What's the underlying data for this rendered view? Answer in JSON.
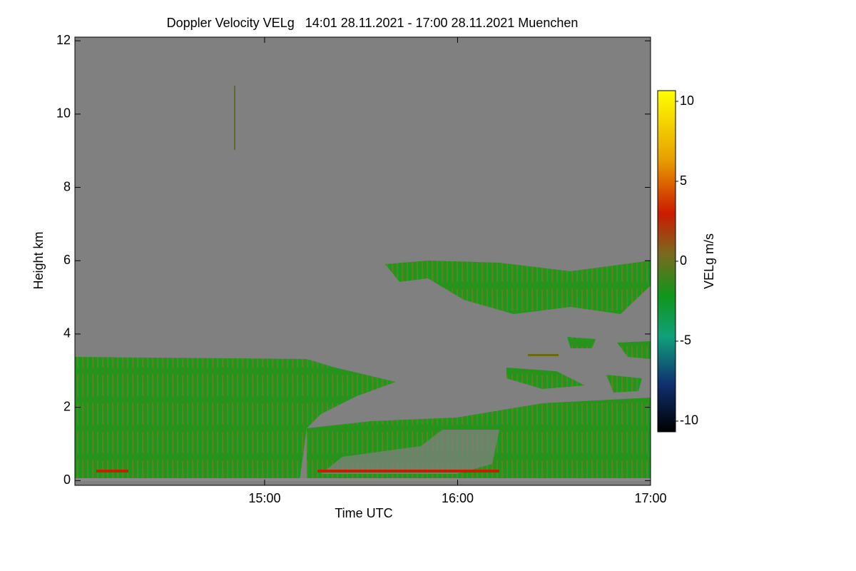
{
  "chart_data": {
    "type": "heatmap",
    "title": "Doppler Velocity VELg   14:01 28.11.2021 - 17:00 28.11.2021 Muenchen",
    "x_label": "Time UTC",
    "y_label": "Height km",
    "xlim": [
      14.017,
      17.0
    ],
    "xticks": [
      {
        "value": 15,
        "label": "15:00"
      },
      {
        "value": 16,
        "label": "16:00"
      },
      {
        "value": 17,
        "label": "17:00"
      }
    ],
    "ylim": [
      -0.13,
      12.1
    ],
    "yticks": [
      0,
      2,
      4,
      6,
      8,
      10,
      12
    ],
    "background": "#808080",
    "colorbar": {
      "label": "VELg m/s",
      "lim": [
        -10.67,
        10.67
      ],
      "ticks": [
        -10,
        -5,
        0,
        5,
        10
      ]
    }
  }
}
